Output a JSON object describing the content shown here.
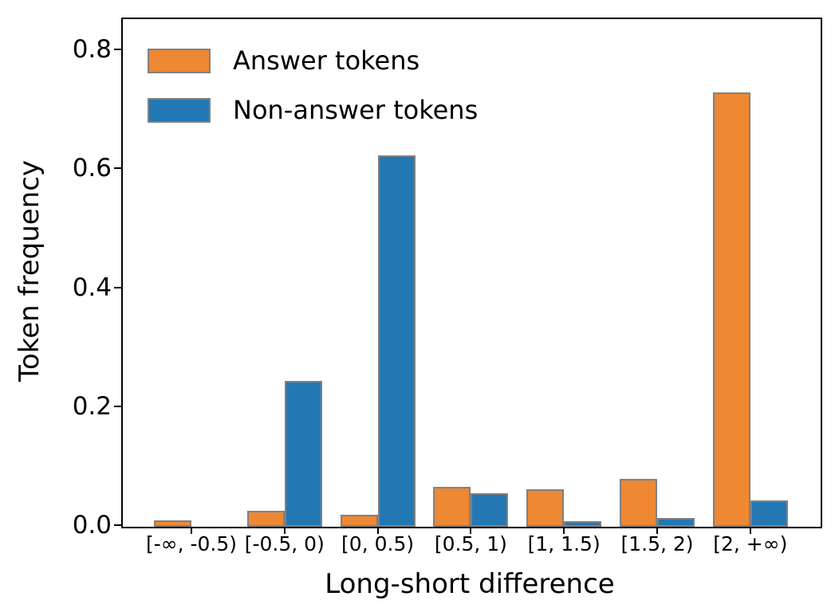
{
  "chart_data": {
    "type": "bar",
    "title": "",
    "xlabel": "Long-short difference",
    "ylabel": "Token frequency",
    "categories": [
      "[-∞, -0.5)",
      "[-0.5, 0)",
      "[0, 0.5)",
      "[0.5, 1)",
      "[1, 1.5)",
      "[1.5, 2)",
      "[2, +∞)"
    ],
    "series": [
      {
        "name": "Answer tokens",
        "color": "#ee8833",
        "values": [
          0.011,
          0.027,
          0.02,
          0.067,
          0.063,
          0.081,
          0.73
        ]
      },
      {
        "name": "Non-answer tokens",
        "color": "#2378b4",
        "values": [
          0.0,
          0.246,
          0.625,
          0.056,
          0.01,
          0.015,
          0.044
        ]
      }
    ],
    "yticks": {
      "labels": [
        "0.0",
        "0.2",
        "0.4",
        "0.6",
        "0.8"
      ],
      "values": [
        0.0,
        0.2,
        0.4,
        0.6,
        0.8
      ]
    },
    "ylim": [
      0,
      0.854
    ],
    "bar_edge_color": "#808080",
    "legend_position": "upper-left",
    "grid": false
  }
}
